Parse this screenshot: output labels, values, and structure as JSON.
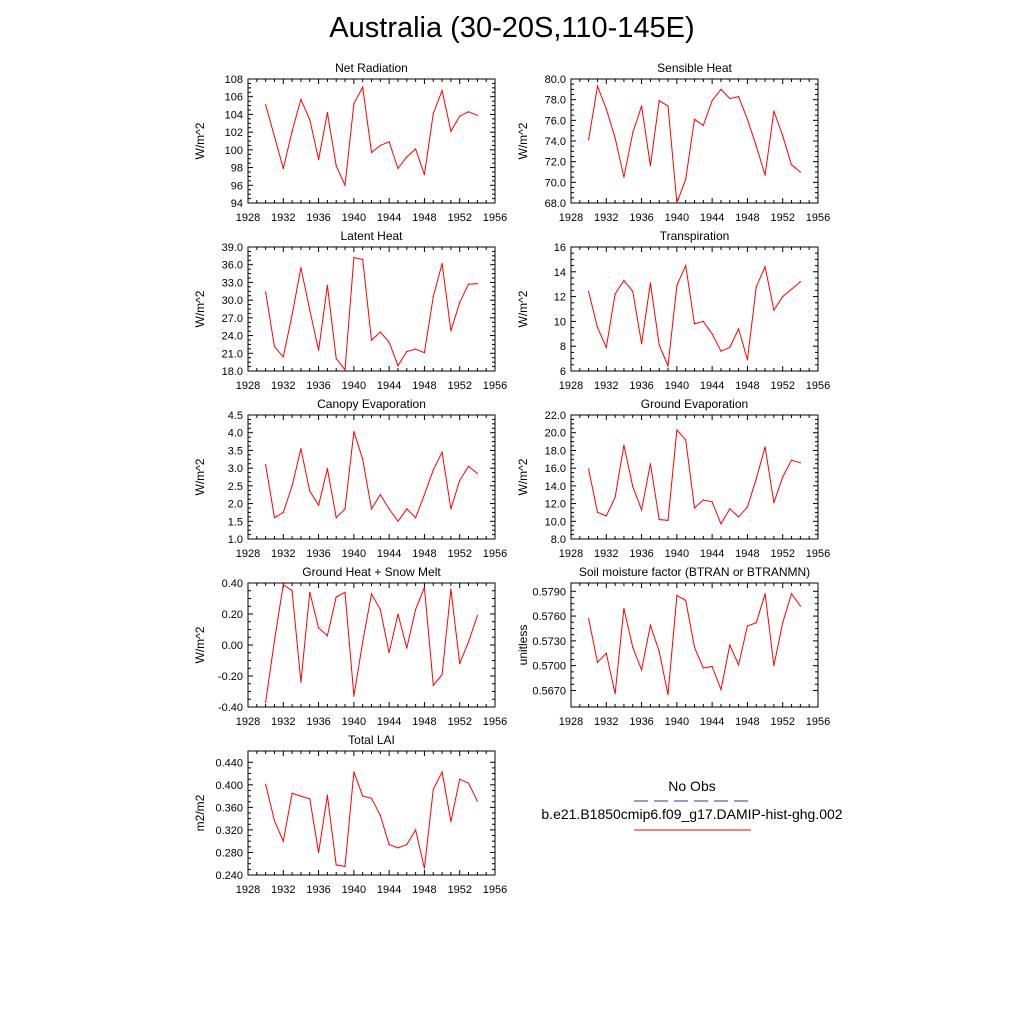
{
  "page": {
    "title": "Australia (30-20S,110-145E)"
  },
  "legend": {
    "obs_label": "No Obs",
    "obs_color": "#3333aa",
    "model_label": "b.e21.B1850cmip6.f09_g17.DAMIP-hist-ghg.002",
    "model_color": "#ff0000"
  },
  "chart_data": [
    {
      "type": "line",
      "title": "Net Radiation",
      "ylabel": "W/m^2",
      "xlim": [
        1928,
        1956
      ],
      "ylim": [
        94,
        108
      ],
      "xticks": [
        "1928",
        "1932",
        "1936",
        "1940",
        "1944",
        "1948",
        "1952",
        "1956"
      ],
      "yticks": [
        "94",
        "96",
        "98",
        "100",
        "102",
        "104",
        "106",
        "108"
      ],
      "x": [
        1930,
        1931,
        1932,
        1933,
        1934,
        1935,
        1936,
        1937,
        1938,
        1939,
        1940,
        1941,
        1942,
        1943,
        1944,
        1945,
        1946,
        1947,
        1948,
        1949,
        1950,
        1951,
        1952,
        1953,
        1954
      ],
      "values": [
        105.1,
        101.5,
        97.9,
        102.1,
        105.7,
        103.4,
        98.9,
        104.2,
        98.2,
        96.0,
        105.2,
        107.1,
        99.7,
        100.5,
        100.9,
        97.9,
        99.2,
        100.1,
        97.2,
        104.1,
        106.7,
        102.1,
        103.8,
        104.3,
        103.9
      ]
    },
    {
      "type": "line",
      "title": "Sensible Heat",
      "ylabel": "W/m^2",
      "xlim": [
        1928,
        1956
      ],
      "ylim": [
        68,
        80
      ],
      "xticks": [
        "1928",
        "1932",
        "1936",
        "1940",
        "1944",
        "1948",
        "1952",
        "1956"
      ],
      "yticks": [
        "68.0",
        "70.0",
        "72.0",
        "74.0",
        "76.0",
        "78.0",
        "80.0"
      ],
      "x": [
        1930,
        1931,
        1932,
        1933,
        1934,
        1935,
        1936,
        1937,
        1938,
        1939,
        1940,
        1941,
        1942,
        1943,
        1944,
        1945,
        1946,
        1947,
        1948,
        1949,
        1950,
        1951,
        1952,
        1953,
        1954
      ],
      "values": [
        74.1,
        79.3,
        77.1,
        74.3,
        70.5,
        74.8,
        77.4,
        71.6,
        77.9,
        77.4,
        68.0,
        70.3,
        76.1,
        75.5,
        77.9,
        79.0,
        78.1,
        78.3,
        76.1,
        73.5,
        70.7,
        76.9,
        74.5,
        71.7,
        71.0
      ]
    },
    {
      "type": "line",
      "title": "Latent Heat",
      "ylabel": "W/m^2",
      "xlim": [
        1928,
        1956
      ],
      "ylim": [
        18,
        39
      ],
      "xticks": [
        "1928",
        "1932",
        "1936",
        "1940",
        "1944",
        "1948",
        "1952",
        "1956"
      ],
      "yticks": [
        "18.0",
        "21.0",
        "24.0",
        "27.0",
        "30.0",
        "33.0",
        "36.0",
        "39.0"
      ],
      "x": [
        1930,
        1931,
        1932,
        1933,
        1934,
        1935,
        1936,
        1937,
        1938,
        1939,
        1940,
        1941,
        1942,
        1943,
        1944,
        1945,
        1946,
        1947,
        1948,
        1949,
        1950,
        1951,
        1952,
        1953,
        1954
      ],
      "values": [
        31.4,
        22.1,
        20.4,
        27.5,
        35.5,
        28.3,
        21.5,
        32.5,
        20.1,
        18.2,
        37.2,
        36.9,
        23.2,
        24.6,
        22.9,
        18.9,
        21.3,
        21.7,
        21.1,
        30.6,
        36.2,
        24.8,
        29.6,
        32.7,
        32.8
      ]
    },
    {
      "type": "line",
      "title": "Transpiration",
      "ylabel": "W/m^2",
      "xlim": [
        1928,
        1956
      ],
      "ylim": [
        6,
        16
      ],
      "xticks": [
        "1928",
        "1932",
        "1936",
        "1940",
        "1944",
        "1948",
        "1952",
        "1956"
      ],
      "yticks": [
        "6",
        "8",
        "10",
        "12",
        "14",
        "16"
      ],
      "x": [
        1930,
        1931,
        1932,
        1933,
        1934,
        1935,
        1936,
        1937,
        1938,
        1939,
        1940,
        1941,
        1942,
        1943,
        1944,
        1945,
        1946,
        1947,
        1948,
        1949,
        1950,
        1951,
        1952,
        1953,
        1954
      ],
      "values": [
        12.4,
        9.5,
        7.9,
        12.2,
        13.3,
        12.4,
        8.2,
        13.1,
        8.1,
        6.4,
        12.9,
        14.5,
        9.8,
        10.0,
        9.0,
        7.6,
        7.9,
        9.4,
        6.9,
        12.8,
        14.4,
        10.9,
        12.0,
        12.6,
        13.2
      ]
    },
    {
      "type": "line",
      "title": "Canopy Evaporation",
      "ylabel": "W/m^2",
      "xlim": [
        1928,
        1956
      ],
      "ylim": [
        1.0,
        4.5
      ],
      "xticks": [
        "1928",
        "1932",
        "1936",
        "1940",
        "1944",
        "1948",
        "1952",
        "1956"
      ],
      "yticks": [
        "1.0",
        "1.5",
        "2.0",
        "2.5",
        "3.0",
        "3.5",
        "4.0",
        "4.5"
      ],
      "x": [
        1930,
        1931,
        1932,
        1933,
        1934,
        1935,
        1936,
        1937,
        1938,
        1939,
        1940,
        1941,
        1942,
        1943,
        1944,
        1945,
        1946,
        1947,
        1948,
        1949,
        1950,
        1951,
        1952,
        1953,
        1954
      ],
      "values": [
        3.1,
        1.6,
        1.75,
        2.5,
        3.55,
        2.35,
        1.95,
        2.99,
        1.6,
        1.85,
        4.03,
        3.25,
        1.85,
        2.25,
        1.85,
        1.5,
        1.85,
        1.6,
        2.25,
        2.95,
        3.45,
        1.85,
        2.65,
        3.05,
        2.85
      ]
    },
    {
      "type": "line",
      "title": "Ground Evaporation",
      "ylabel": "W/m^2",
      "xlim": [
        1928,
        1956
      ],
      "ylim": [
        8,
        22
      ],
      "xticks": [
        "1928",
        "1932",
        "1936",
        "1940",
        "1944",
        "1948",
        "1952",
        "1956"
      ],
      "yticks": [
        "8.0",
        "10.0",
        "12.0",
        "14.0",
        "16.0",
        "18.0",
        "20.0",
        "22.0"
      ],
      "x": [
        1930,
        1931,
        1932,
        1933,
        1934,
        1935,
        1936,
        1937,
        1938,
        1939,
        1940,
        1941,
        1942,
        1943,
        1944,
        1945,
        1946,
        1947,
        1948,
        1949,
        1950,
        1951,
        1952,
        1953,
        1954
      ],
      "values": [
        15.9,
        11.0,
        10.6,
        12.7,
        18.6,
        13.9,
        11.3,
        16.5,
        10.2,
        10.1,
        20.3,
        19.2,
        11.5,
        12.4,
        12.2,
        9.7,
        11.4,
        10.5,
        11.6,
        14.8,
        18.4,
        12.1,
        15.0,
        16.9,
        16.6
      ]
    },
    {
      "type": "line",
      "title": "Ground Heat + Snow Melt",
      "ylabel": "W/m^2",
      "xlim": [
        1928,
        1956
      ],
      "ylim": [
        -0.4,
        0.4
      ],
      "xticks": [
        "1928",
        "1932",
        "1936",
        "1940",
        "1944",
        "1948",
        "1952",
        "1956"
      ],
      "yticks": [
        "-0.40",
        "-0.20",
        "0.00",
        "0.20",
        "0.40"
      ],
      "x": [
        1930,
        1931,
        1932,
        1933,
        1934,
        1935,
        1936,
        1937,
        1938,
        1939,
        1940,
        1941,
        1942,
        1943,
        1944,
        1945,
        1946,
        1947,
        1948,
        1949,
        1950,
        1951,
        1952,
        1953,
        1954
      ],
      "values": [
        -0.37,
        0.03,
        0.39,
        0.35,
        -0.24,
        0.34,
        0.11,
        0.06,
        0.31,
        0.34,
        -0.33,
        0.02,
        0.33,
        0.23,
        -0.05,
        0.2,
        -0.02,
        0.23,
        0.37,
        -0.26,
        -0.19,
        0.36,
        -0.12,
        0.02,
        0.19
      ]
    },
    {
      "type": "line",
      "title": "Soil moisture factor (BTRAN or BTRANMN)",
      "ylabel": "unitless",
      "xlim": [
        1928,
        1956
      ],
      "ylim": [
        0.565,
        0.58
      ],
      "xticks": [
        "1928",
        "1932",
        "1936",
        "1940",
        "1944",
        "1948",
        "1952",
        "1956"
      ],
      "yticks": [
        "0.5670",
        "0.5700",
        "0.5730",
        "0.5760",
        "0.5790"
      ],
      "x": [
        1930,
        1931,
        1932,
        1933,
        1934,
        1935,
        1936,
        1937,
        1938,
        1939,
        1940,
        1941,
        1942,
        1943,
        1944,
        1945,
        1946,
        1947,
        1948,
        1949,
        1950,
        1951,
        1952,
        1953,
        1954
      ],
      "values": [
        0.5757,
        0.5704,
        0.5715,
        0.5666,
        0.5769,
        0.5722,
        0.5695,
        0.5749,
        0.5717,
        0.5665,
        0.5785,
        0.5779,
        0.5722,
        0.5697,
        0.5699,
        0.5671,
        0.5725,
        0.5701,
        0.5748,
        0.5752,
        0.5787,
        0.57,
        0.5752,
        0.5787,
        0.5772
      ]
    },
    {
      "type": "line",
      "title": "Total LAI",
      "ylabel": "m2/m2",
      "xlim": [
        1928,
        1956
      ],
      "ylim": [
        0.24,
        0.46
      ],
      "xticks": [
        "1928",
        "1932",
        "1936",
        "1940",
        "1944",
        "1948",
        "1952",
        "1956"
      ],
      "yticks": [
        "0.240",
        "0.280",
        "0.320",
        "0.360",
        "0.400",
        "0.440"
      ],
      "x": [
        1930,
        1931,
        1932,
        1933,
        1934,
        1935,
        1936,
        1937,
        1938,
        1939,
        1940,
        1941,
        1942,
        1943,
        1944,
        1945,
        1946,
        1947,
        1948,
        1949,
        1950,
        1951,
        1952,
        1953,
        1954
      ],
      "values": [
        0.401,
        0.336,
        0.3,
        0.385,
        0.38,
        0.375,
        0.28,
        0.381,
        0.258,
        0.255,
        0.423,
        0.38,
        0.376,
        0.346,
        0.294,
        0.288,
        0.294,
        0.32,
        0.252,
        0.392,
        0.423,
        0.335,
        0.41,
        0.403,
        0.371
      ]
    }
  ]
}
